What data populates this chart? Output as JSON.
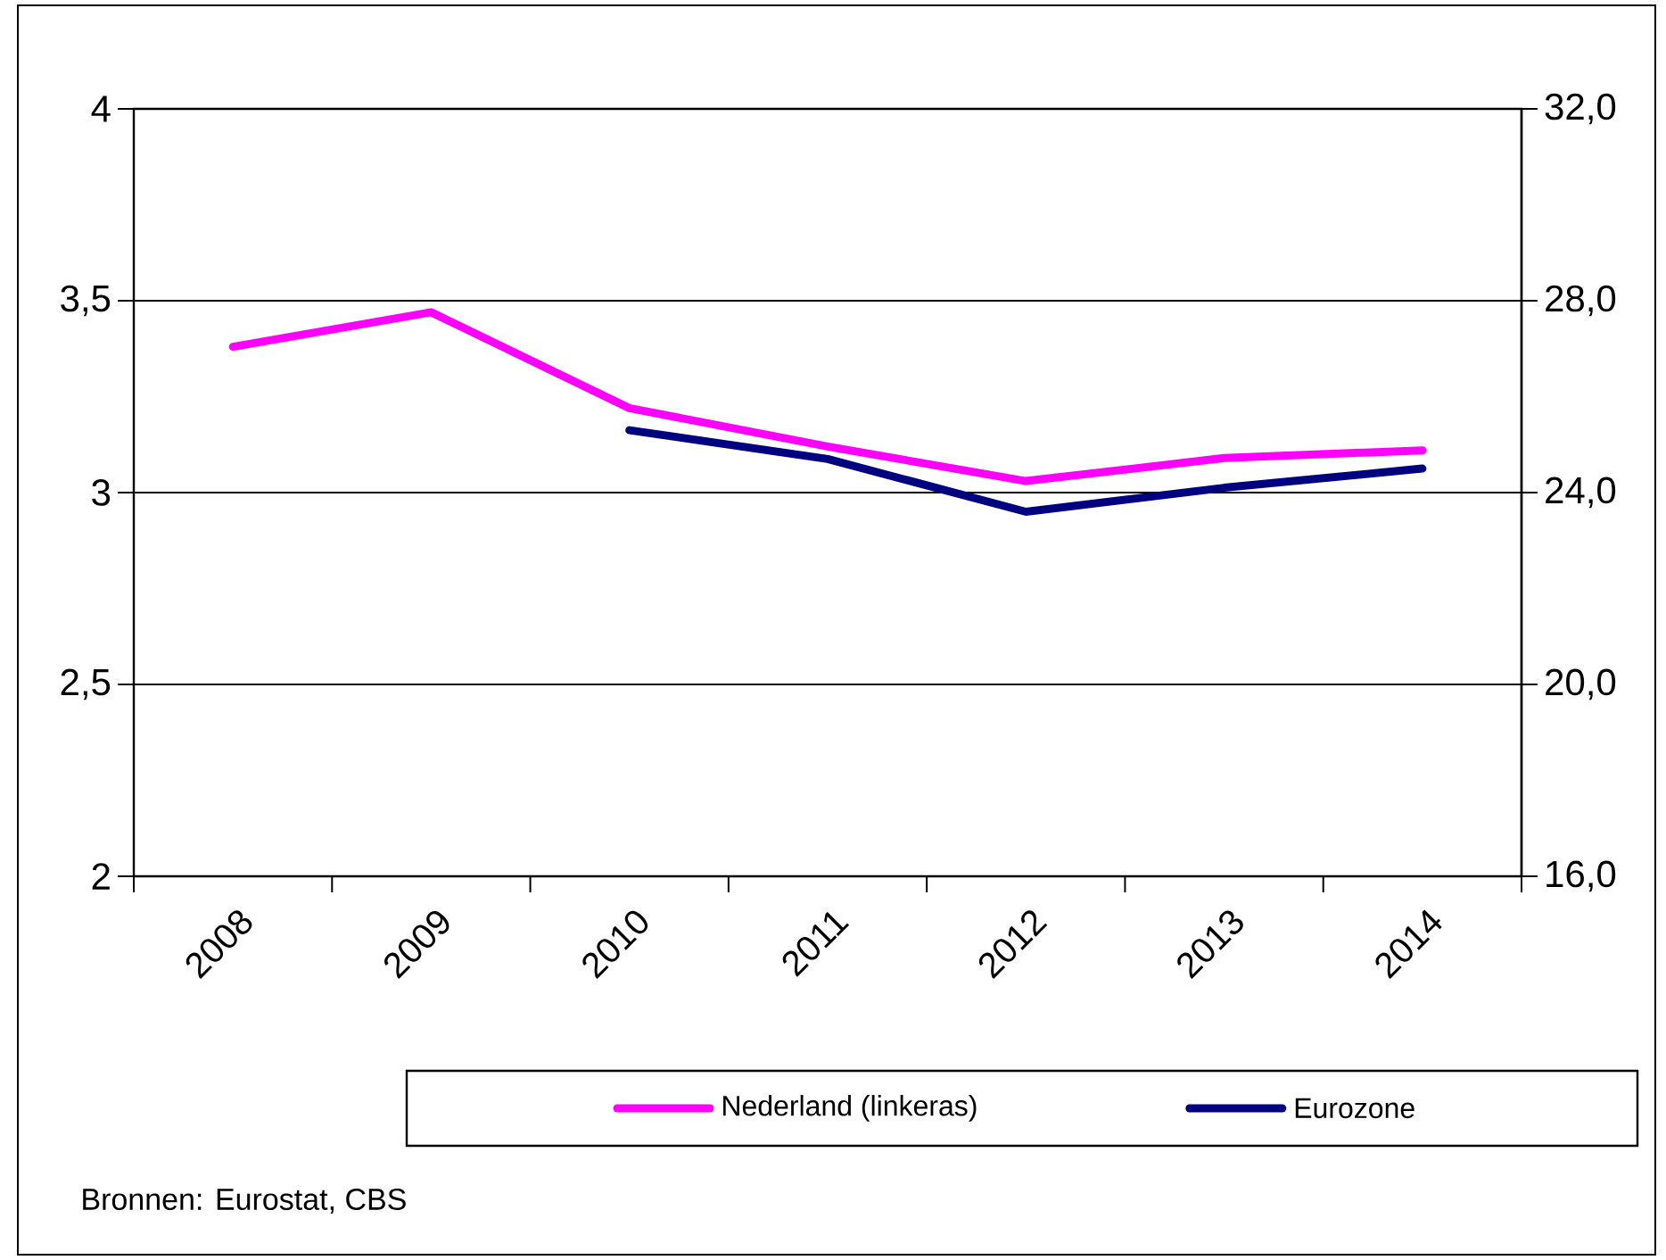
{
  "chart_data": {
    "type": "line",
    "categories": [
      "2008",
      "2009",
      "2010",
      "2011",
      "2012",
      "2013",
      "2014"
    ],
    "series": [
      {
        "name": "Nederland (linkeras)",
        "color": "#ff00ff",
        "values": [
          3.38,
          3.47,
          3.22,
          3.12,
          3.03,
          3.09,
          3.11
        ]
      },
      {
        "name": "Eurozone",
        "color": "#000080",
        "axis": "y2",
        "values": [
          null,
          null,
          25.3,
          24.7,
          23.6,
          24.1,
          24.5
        ]
      }
    ],
    "ylim": [
      2,
      4
    ],
    "yticks": [
      2,
      {
        "value": 2.5,
        "label": "2,5"
      },
      3,
      {
        "value": 3.5,
        "label": "3,5"
      },
      4
    ],
    "y2lim": [
      16,
      32
    ],
    "y2ticks": [
      {
        "value": 16,
        "label": "16,0"
      },
      {
        "value": 20,
        "label": "20,0"
      },
      {
        "value": 24,
        "label": "24,0"
      },
      {
        "value": 28,
        "label": "28,0"
      },
      {
        "value": 32,
        "label": "32,0"
      }
    ],
    "grid": "y",
    "legend": "bottom",
    "marker": "none",
    "line_style": "solid",
    "annotations": [
      "Bronnen: Eurostat, CBS"
    ]
  }
}
